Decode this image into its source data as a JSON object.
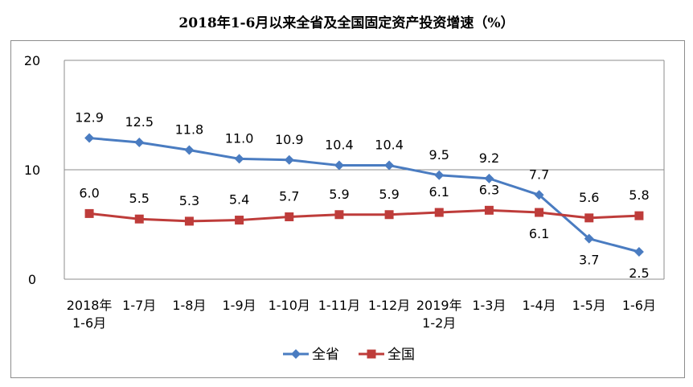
{
  "chart_data": {
    "type": "line",
    "title": "2018年1-6月以来全省及全国固定资产投资增速（%）",
    "categories": [
      [
        "2018年",
        "1-6月"
      ],
      [
        "1-7月"
      ],
      [
        "1-8月"
      ],
      [
        "1-9月"
      ],
      [
        "1-10月"
      ],
      [
        "1-11月"
      ],
      [
        "1-12月"
      ],
      [
        "2019年",
        "1-2月"
      ],
      [
        "1-3月"
      ],
      [
        "1-4月"
      ],
      [
        "1-5月"
      ],
      [
        "1-6月"
      ]
    ],
    "ylim": [
      0,
      20
    ],
    "yticks": [
      "0",
      "10",
      "20"
    ],
    "series": [
      {
        "name": "全省",
        "color": "#4a7cc1",
        "marker": "diamond",
        "values": [
          12.9,
          12.5,
          11.8,
          11.0,
          10.9,
          10.4,
          10.4,
          9.5,
          9.2,
          7.7,
          3.7,
          2.5
        ],
        "labels": [
          "12.9",
          "12.5",
          "11.8",
          "11.0",
          "10.9",
          "10.4",
          "10.4",
          "9.5",
          "9.2",
          "7.7",
          "3.7",
          "2.5"
        ],
        "label_pos": [
          "above",
          "above",
          "above",
          "above",
          "above",
          "above",
          "above",
          "above",
          "above",
          "above",
          "below",
          "below"
        ]
      },
      {
        "name": "全国",
        "color": "#be3c3a",
        "marker": "square",
        "values": [
          6.0,
          5.5,
          5.3,
          5.4,
          5.7,
          5.9,
          5.9,
          6.1,
          6.3,
          6.1,
          5.6,
          5.8
        ],
        "labels": [
          "6.0",
          "5.5",
          "5.3",
          "5.4",
          "5.7",
          "5.9",
          "5.9",
          "6.1",
          "6.3",
          "6.1",
          "5.6",
          "5.8"
        ],
        "label_pos": [
          "above",
          "above",
          "above",
          "above",
          "above",
          "above",
          "above",
          "above",
          "above",
          "below",
          "above",
          "above"
        ]
      }
    ],
    "gridlines": true,
    "legend": "bottom-center"
  }
}
